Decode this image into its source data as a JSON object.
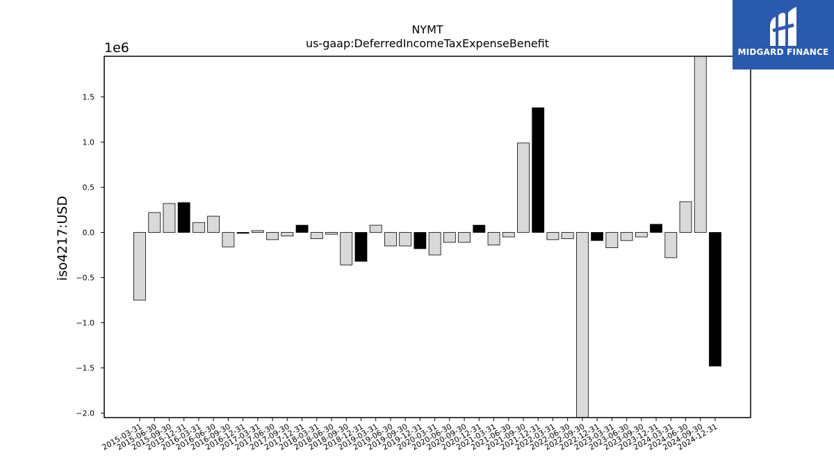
{
  "chart_data": {
    "type": "bar",
    "title": "NYMT",
    "subtitle": "us-gaap:DeferredIncomeTaxExpenseBenefit",
    "ylabel": "iso4217:USD",
    "xlabel": "",
    "y_scale_label": "1e6",
    "ylim": [
      -2.05,
      1.95
    ],
    "y_ticks": [
      -2.0,
      -1.5,
      -1.0,
      -0.5,
      0.0,
      0.5,
      1.0,
      1.5
    ],
    "y_tick_labels": [
      "−2.0",
      "−1.5",
      "−1.0",
      "−0.5",
      "0.0",
      "0.5",
      "1.0",
      "1.5"
    ],
    "grid": false,
    "categories": [
      "2015-03-31",
      "2015-06-30",
      "2015-09-30",
      "2015-12-31",
      "2016-03-31",
      "2016-06-30",
      "2016-09-30",
      "2016-12-31",
      "2017-03-31",
      "2017-06-30",
      "2017-09-30",
      "2017-12-31",
      "2018-03-31",
      "2018-06-30",
      "2018-09-30",
      "2018-12-31",
      "2019-03-31",
      "2019-06-30",
      "2019-09-30",
      "2019-12-31",
      "2020-03-31",
      "2020-06-30",
      "2020-09-30",
      "2020-12-31",
      "2021-03-31",
      "2021-06-30",
      "2021-09-30",
      "2021-12-31",
      "2022-03-31",
      "2022-06-30",
      "2022-09-30",
      "2022-12-31",
      "2023-03-31",
      "2023-06-30",
      "2023-09-30",
      "2023-12-31",
      "2024-03-31",
      "2024-06-30",
      "2024-09-30",
      "2024-12-31"
    ],
    "values": [
      -0.75,
      0.22,
      0.32,
      0.33,
      0.11,
      0.18,
      -0.16,
      -0.01,
      0.02,
      -0.08,
      -0.04,
      0.08,
      -0.07,
      -0.02,
      -0.36,
      -0.32,
      0.08,
      -0.15,
      -0.15,
      -0.18,
      -0.25,
      -0.11,
      -0.11,
      0.08,
      -0.14,
      -0.05,
      0.99,
      1.38,
      -0.08,
      -0.07,
      -2.05,
      -0.09,
      -0.17,
      -0.09,
      -0.05,
      0.09,
      -0.28,
      0.34,
      1.95,
      -1.48
    ],
    "bar_colors": [
      "#d9d9d9",
      "#d9d9d9",
      "#d9d9d9",
      "#000000",
      "#d9d9d9",
      "#d9d9d9",
      "#d9d9d9",
      "#000000",
      "#d9d9d9",
      "#d9d9d9",
      "#d9d9d9",
      "#000000",
      "#d9d9d9",
      "#d9d9d9",
      "#d9d9d9",
      "#000000",
      "#d9d9d9",
      "#d9d9d9",
      "#d9d9d9",
      "#000000",
      "#d9d9d9",
      "#d9d9d9",
      "#d9d9d9",
      "#000000",
      "#d9d9d9",
      "#d9d9d9",
      "#d9d9d9",
      "#000000",
      "#d9d9d9",
      "#d9d9d9",
      "#d9d9d9",
      "#000000",
      "#d9d9d9",
      "#d9d9d9",
      "#d9d9d9",
      "#000000",
      "#d9d9d9",
      "#d9d9d9",
      "#d9d9d9",
      "#000000"
    ]
  },
  "logo": {
    "text": "MIDGARD FINANCE",
    "background": "#2a5aad",
    "icon": "midgard-logo-icon"
  }
}
